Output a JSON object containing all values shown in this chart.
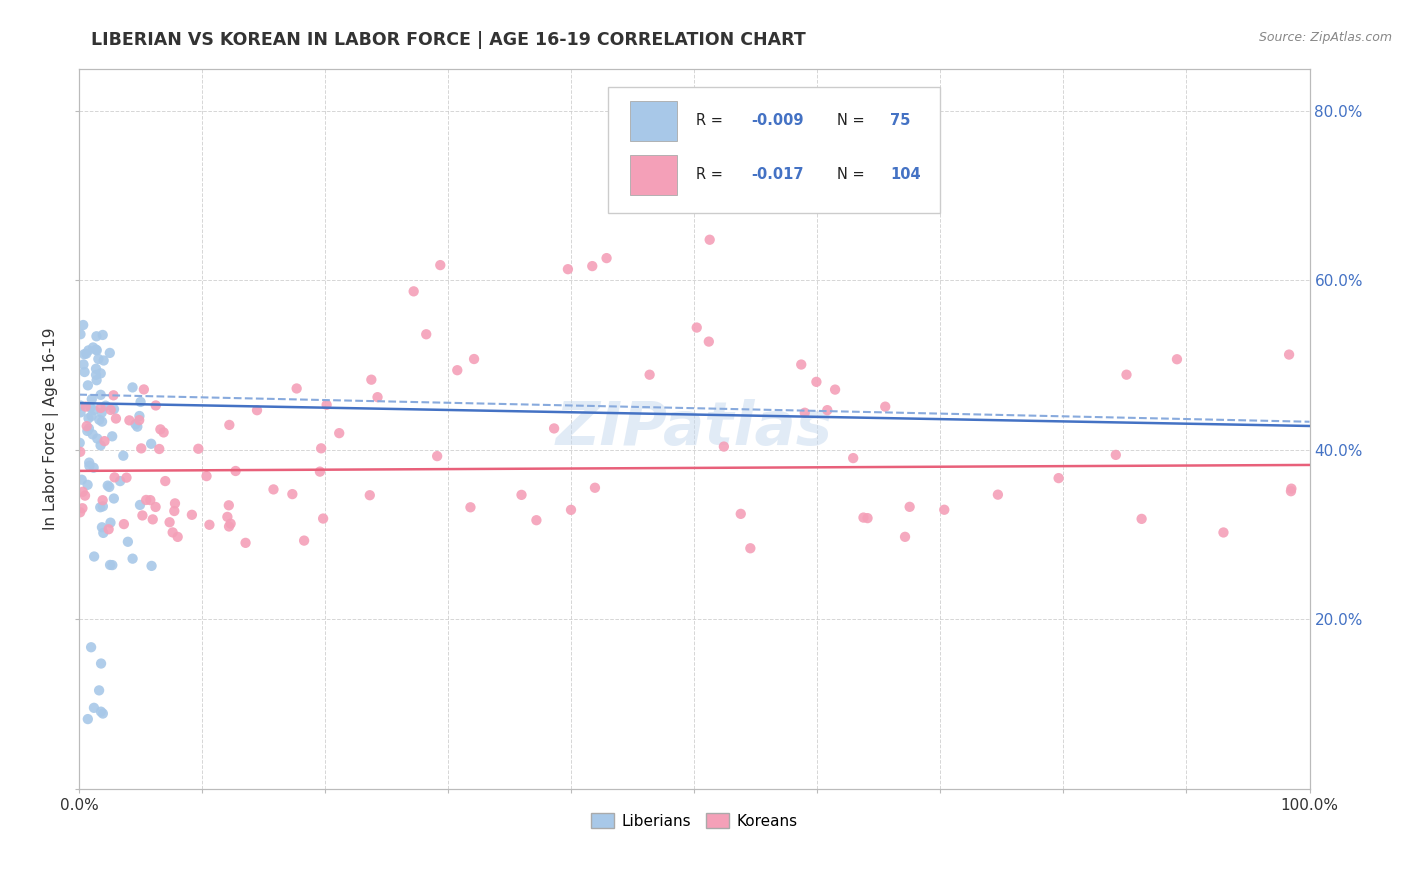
{
  "title": "LIBERIAN VS KOREAN IN LABOR FORCE | AGE 16-19 CORRELATION CHART",
  "source_text": "Source: ZipAtlas.com",
  "ylabel": "In Labor Force | Age 16-19",
  "xlim": [
    0.0,
    1.0
  ],
  "ylim": [
    0.0,
    0.85
  ],
  "liberian_R": -0.009,
  "liberian_N": 75,
  "korean_R": -0.017,
  "korean_N": 104,
  "liberian_dot_color": "#a8c8e8",
  "liberian_line_color": "#4472c4",
  "korean_dot_color": "#f4a0b8",
  "korean_line_color": "#e8607a",
  "korean_dash_color": "#88aadd",
  "background_color": "#ffffff",
  "grid_color": "#cccccc",
  "watermark": "ZIPatlas",
  "title_color": "#333333",
  "axis_label_color": "#333333",
  "tick_color": "#4472c4",
  "source_color": "#888888"
}
